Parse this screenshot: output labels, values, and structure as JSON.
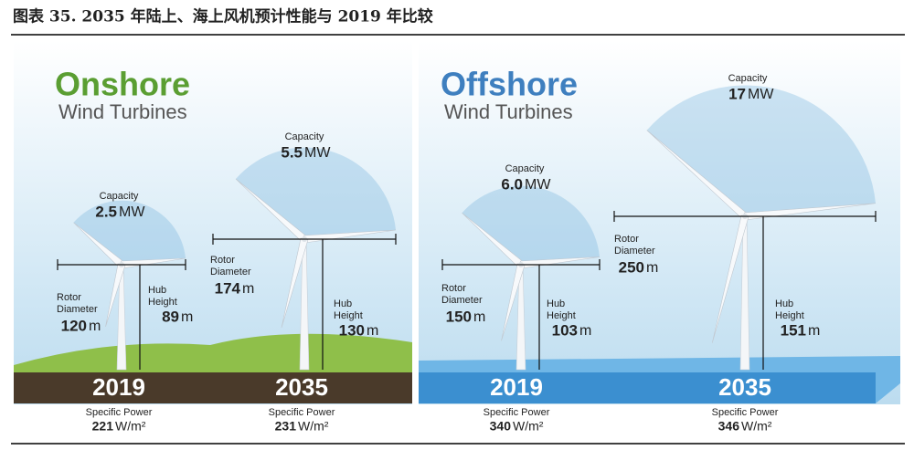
{
  "header": {
    "title": "图表 35. 2035 年陆上、海上风机预计性能与 2019 年比较"
  },
  "panels": [
    {
      "title": "Onshore",
      "subtitle": "Wind Turbines",
      "turbines": [
        {
          "year": "2019",
          "capacity_label": "Capacity",
          "capacity": "2.5",
          "capacity_unit": "MW",
          "rotor_label": [
            "Rotor",
            "Diameter"
          ],
          "rotor_diameter": "120",
          "rotor_unit": "m",
          "hub_label": [
            "Hub",
            "Height"
          ],
          "hub_height": "89",
          "hub_unit": "m",
          "power_label": "Specific Power",
          "specific_power": "221",
          "power_unit": "W/m²"
        },
        {
          "year": "2035",
          "capacity_label": "Capacity",
          "capacity": "5.5",
          "capacity_unit": "MW",
          "rotor_label": [
            "Rotor",
            "Diameter"
          ],
          "rotor_diameter": "174",
          "rotor_unit": "m",
          "hub_label": [
            "Hub",
            "Height"
          ],
          "hub_height": "130",
          "hub_unit": "m",
          "power_label": "Specific Power",
          "specific_power": "231",
          "power_unit": "W/m²"
        }
      ]
    },
    {
      "title": "Offshore",
      "subtitle": "Wind Turbines",
      "turbines": [
        {
          "year": "2019",
          "capacity_label": "Capacity",
          "capacity": "6.0",
          "capacity_unit": "MW",
          "rotor_label": [
            "Rotor",
            "Diameter"
          ],
          "rotor_diameter": "150",
          "rotor_unit": "m",
          "hub_label": [
            "Hub",
            "Height"
          ],
          "hub_height": "103",
          "hub_unit": "m",
          "power_label": "Specific Power",
          "specific_power": "340",
          "power_unit": "W/m²"
        },
        {
          "year": "2035",
          "capacity_label": "Capacity",
          "capacity": "17",
          "capacity_unit": "MW",
          "rotor_label": [
            "Rotor",
            "Diameter"
          ],
          "rotor_diameter": "250",
          "rotor_unit": "m",
          "hub_label": [
            "Hub",
            "Height"
          ],
          "hub_height": "151",
          "hub_unit": "m",
          "power_label": "Specific Power",
          "specific_power": "346",
          "power_unit": "W/m²"
        }
      ]
    }
  ]
}
